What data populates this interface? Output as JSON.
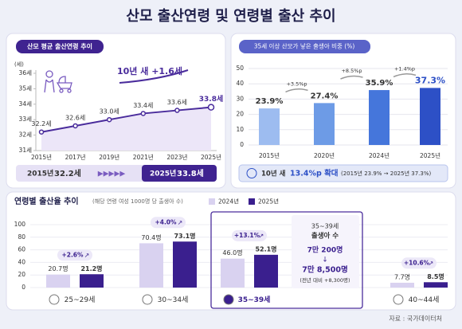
{
  "title": "산모 출산연령 및 연령별 출산 추이",
  "source": "자료 : 국가데이터처",
  "chart_data": [
    {
      "type": "line",
      "title": "산모 평균 출산연령 추이",
      "y_unit": "(세)",
      "categories": [
        "2015년",
        "2017년",
        "2019년",
        "2021년",
        "2023년",
        "2025년"
      ],
      "values": [
        32.2,
        32.6,
        33.0,
        33.4,
        33.6,
        33.8
      ],
      "value_labels": [
        "32.2세",
        "32.6세",
        "33.0세",
        "33.4세",
        "33.6세",
        "33.8세"
      ],
      "color": "#4a2c9c",
      "ylim": [
        31,
        36
      ],
      "yticks": [
        {
          "value": 31,
          "label": "31세"
        },
        {
          "value": 32,
          "label": "32세"
        },
        {
          "value": 33,
          "label": "33세"
        },
        {
          "value": 34,
          "label": "34세"
        },
        {
          "value": 35,
          "label": "35세"
        },
        {
          "value": 36,
          "label": "36세"
        }
      ],
      "grid": false,
      "annotation": "10년 새 +1.6세",
      "summary": {
        "start_year": "2015년",
        "start_value": "32.2세",
        "end_year": "2025년",
        "end_value": "33.8세"
      }
    },
    {
      "type": "bar",
      "title": "35세 이상 산모가 낳은 출생아 비중 (%)",
      "categories": [
        "2015년",
        "2020년",
        "2024년",
        "2025년"
      ],
      "values": [
        23.9,
        27.4,
        35.9,
        37.3
      ],
      "value_labels": [
        "23.9%",
        "27.4%",
        "35.9%",
        "37.3%"
      ],
      "colors": [
        "#9dbcf0",
        "#6d9be6",
        "#4576db",
        "#2d50c6"
      ],
      "ylim": [
        0,
        50
      ],
      "yticks": [
        0,
        10,
        20,
        30,
        40,
        50
      ],
      "grid": true,
      "changes": [
        "+3.5%p",
        "+8.5%p",
        "+1.4%p"
      ],
      "summary": {
        "period": "10년 새",
        "change": "13.4%p 확대",
        "detail": "(2015년 23.9% → 2025년 37.3%)"
      }
    },
    {
      "type": "grouped_bar",
      "title": "연령별 출산율 추이",
      "subtitle": "(해당 연령 여성 1000명 당 출생아 수)",
      "categories": [
        "25~29세",
        "30~34세",
        "35~39세",
        "40~44세"
      ],
      "series": [
        {
          "name": "2024년",
          "color": "#d9d2f0",
          "values": [
            20.7,
            70.4,
            46.0,
            7.7
          ],
          "value_labels": [
            "20.7명",
            "70.4명",
            "46.0명",
            "7.7명"
          ]
        },
        {
          "name": "2025년",
          "color": "#3a1f8e",
          "values": [
            21.2,
            73.1,
            52.1,
            8.5
          ],
          "value_labels": [
            "21.2명",
            "73.1명",
            "52.1명",
            "8.5명"
          ]
        }
      ],
      "ylim": [
        0,
        100
      ],
      "yticks": [
        0,
        20,
        40,
        60,
        80,
        100
      ],
      "grid": true,
      "changes": [
        "+2.6%",
        "+4.0%",
        "+13.1%",
        "+10.6%"
      ],
      "highlight": {
        "title": "35~39세",
        "subtitle": "출생아 수",
        "from": "7만 200명",
        "to": "7만 8,500명",
        "note": "(전년 대비 +8,300명)"
      }
    }
  ]
}
